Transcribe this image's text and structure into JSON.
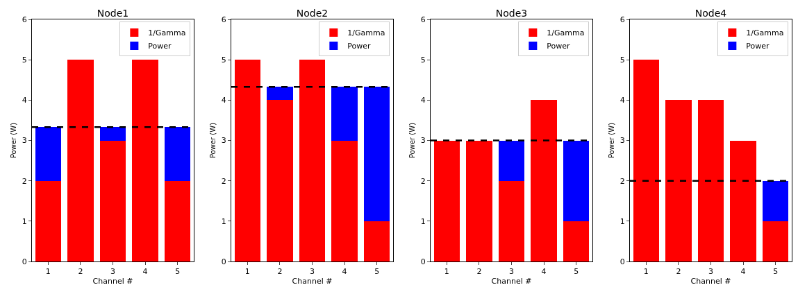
{
  "chart_data": [
    {
      "type": "bar",
      "title": "Node1",
      "xlabel": "Channel #",
      "ylabel": "Power (W)",
      "categories": [
        "1",
        "2",
        "3",
        "4",
        "5"
      ],
      "stacked": true,
      "ylim": [
        0,
        6
      ],
      "yticks": [
        0,
        1,
        2,
        3,
        4,
        5,
        6
      ],
      "grid": false,
      "legend": "top right",
      "series": [
        {
          "name": "1/Gamma",
          "color": "#ff0000",
          "values": [
            2,
            5,
            3,
            5,
            2
          ]
        },
        {
          "name": "Power",
          "color": "#0000ff",
          "values": [
            1.33,
            0,
            0.33,
            0,
            1.33
          ]
        }
      ],
      "ref_lines": [
        {
          "axis": "y",
          "value": 3.33,
          "color": "#000000",
          "line_style": "dashed"
        }
      ]
    },
    {
      "type": "bar",
      "title": "Node2",
      "xlabel": "Channel #",
      "ylabel": "Power (W)",
      "categories": [
        "1",
        "2",
        "3",
        "4",
        "5"
      ],
      "stacked": true,
      "ylim": [
        0,
        6
      ],
      "yticks": [
        0,
        1,
        2,
        3,
        4,
        5,
        6
      ],
      "grid": false,
      "legend": "top right",
      "series": [
        {
          "name": "1/Gamma",
          "color": "#ff0000",
          "values": [
            5,
            4,
            5,
            3,
            1
          ]
        },
        {
          "name": "Power",
          "color": "#0000ff",
          "values": [
            0,
            0.33,
            0,
            1.33,
            3.33
          ]
        }
      ],
      "ref_lines": [
        {
          "axis": "y",
          "value": 4.33,
          "color": "#000000",
          "line_style": "dashed"
        }
      ]
    },
    {
      "type": "bar",
      "title": "Node3",
      "xlabel": "Channel #",
      "ylabel": "Power (W)",
      "categories": [
        "1",
        "2",
        "3",
        "4",
        "5"
      ],
      "stacked": true,
      "ylim": [
        0,
        6
      ],
      "yticks": [
        0,
        1,
        2,
        3,
        4,
        5,
        6
      ],
      "grid": false,
      "legend": "top right",
      "series": [
        {
          "name": "1/Gamma",
          "color": "#ff0000",
          "values": [
            3,
            3,
            2,
            4,
            1
          ]
        },
        {
          "name": "Power",
          "color": "#0000ff",
          "values": [
            0,
            0,
            1,
            0,
            2
          ]
        }
      ],
      "ref_lines": [
        {
          "axis": "y",
          "value": 3,
          "color": "#000000",
          "line_style": "dashed"
        }
      ]
    },
    {
      "type": "bar",
      "title": "Node4",
      "xlabel": "Channel #",
      "ylabel": "Power (W)",
      "categories": [
        "1",
        "2",
        "3",
        "4",
        "5"
      ],
      "stacked": true,
      "ylim": [
        0,
        6
      ],
      "yticks": [
        0,
        1,
        2,
        3,
        4,
        5,
        6
      ],
      "grid": false,
      "legend": "top right",
      "series": [
        {
          "name": "1/Gamma",
          "color": "#ff0000",
          "values": [
            5,
            4,
            4,
            3,
            1
          ]
        },
        {
          "name": "Power",
          "color": "#0000ff",
          "values": [
            0,
            0,
            0,
            0,
            1
          ]
        }
      ],
      "ref_lines": [
        {
          "axis": "y",
          "value": 2,
          "color": "#000000",
          "line_style": "dashed"
        }
      ]
    }
  ]
}
